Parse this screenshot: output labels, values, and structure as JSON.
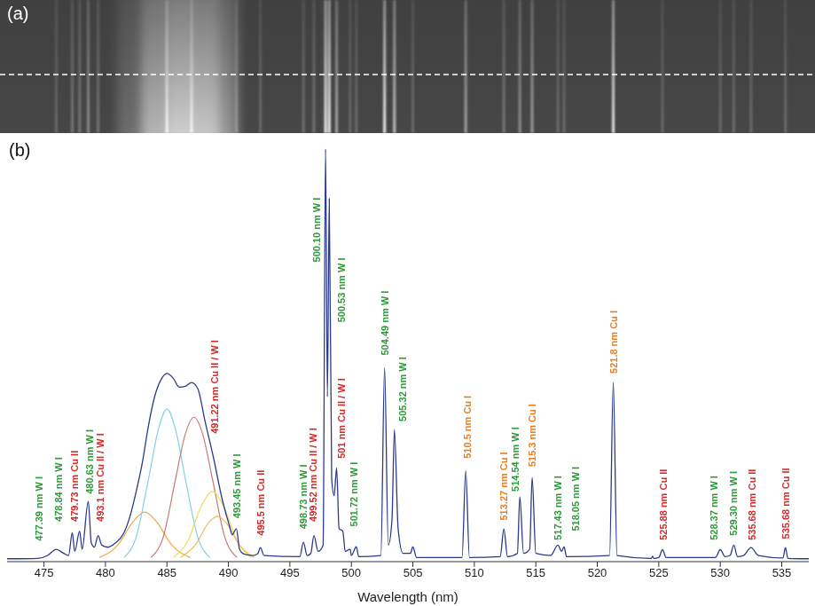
{
  "image_panel": {
    "label": "(a)"
  },
  "chart_data": {
    "type": "line",
    "panel_label": "(b)",
    "xlabel": "Wavelength (nm)",
    "xlim": [
      472,
      537.2
    ],
    "xticks": [
      475,
      480,
      485,
      490,
      495,
      500,
      505,
      510,
      515,
      520,
      525,
      530,
      535
    ],
    "ylim": [
      0,
      100
    ],
    "yticks": [],
    "tick_labels": "x",
    "grid": false,
    "color": "#2b3a8c",
    "x": [
      472.0,
      474.5,
      475.3,
      476.0,
      476.6,
      477.0,
      477.3,
      477.5,
      477.9,
      478.1,
      478.6,
      478.85,
      479.1,
      479.4,
      479.7,
      480.2,
      480.8,
      481.5,
      482.0,
      482.5,
      483.0,
      483.5,
      484.0,
      484.5,
      485.0,
      485.5,
      486.0,
      486.5,
      487.0,
      487.5,
      488.1,
      488.8,
      489.5,
      490.1,
      490.3,
      490.65,
      490.9,
      491.3,
      492.0,
      492.4,
      492.6,
      492.9,
      495.8,
      496.1,
      496.4,
      496.7,
      496.95,
      497.3,
      497.7,
      497.9,
      498.05,
      498.2,
      498.4,
      498.6,
      498.8,
      499.0,
      499.3,
      499.5,
      499.9,
      500.0,
      500.4,
      500.6,
      502.4,
      502.7,
      503.0,
      503.3,
      503.5,
      503.8,
      504.2,
      504.8,
      505.0,
      505.3,
      509.0,
      509.3,
      509.6,
      512.1,
      512.4,
      512.7,
      513.5,
      513.7,
      514.0,
      514.5,
      514.7,
      515.0,
      516.2,
      516.8,
      517.1,
      517.3,
      517.5,
      521.0,
      521.3,
      521.6,
      524.4,
      524.5,
      524.6,
      525.0,
      525.3,
      525.6,
      529.6,
      530.0,
      530.4,
      530.8,
      531.1,
      531.4,
      531.9,
      532.5,
      533.1,
      535.1,
      535.3,
      535.5,
      537.2
    ],
    "values": [
      0.7,
      0.8,
      1.5,
      3.0,
      2.0,
      1.5,
      7.0,
      2.5,
      7.4,
      3.0,
      14.6,
      4.5,
      3.5,
      6.3,
      4.0,
      3.5,
      4.5,
      7.0,
      11,
      17,
      24,
      33,
      40,
      44,
      45.6,
      44.5,
      42.3,
      42.5,
      43.4,
      42.0,
      34,
      25,
      15,
      8.5,
      6.5,
      8.0,
      3.0,
      1.8,
      1.5,
      2.0,
      3.4,
      1.5,
      1.2,
      4.7,
      1.5,
      2.0,
      6.3,
      2.5,
      4.0,
      100,
      40,
      88,
      20,
      16,
      22.7,
      8.0,
      7.4,
      2.5,
      3.0,
      1.5,
      3.6,
      1.2,
      1.5,
      47,
      4,
      10,
      32,
      8,
      2,
      2,
      3.6,
      1.0,
      1.0,
      22,
      1.0,
      1.2,
      7.9,
      1.2,
      2,
      15.7,
      2,
      3,
      20.4,
      2.0,
      1.5,
      4.0,
      2.5,
      3.6,
      1.2,
      1.5,
      43.4,
      1.5,
      0.8,
      1.3,
      0.8,
      1.0,
      2.9,
      1.0,
      1.0,
      2.9,
      1.2,
      1.5,
      4.0,
      1.2,
      1.5,
      3.4,
      1.5,
      0.9,
      3.4,
      0.8,
      0.7
    ],
    "series": [
      {
        "color": "#f0a848",
        "x": [
          479.5,
          481.0,
          482.2,
          483.2,
          484.2,
          485.4,
          486.9
        ],
        "values": [
          1,
          4,
          9.5,
          12,
          9.5,
          4,
          1
        ]
      },
      {
        "color": "#7fd3e0",
        "x": [
          481.5,
          482.5,
          483.5,
          484.3,
          485.0,
          485.7,
          486.5,
          487.5,
          488.5
        ],
        "values": [
          1,
          6,
          20,
          32,
          37,
          32,
          20,
          6,
          1
        ]
      },
      {
        "color": "#c97a7a",
        "x": [
          483.7,
          484.7,
          485.7,
          486.5,
          487.2,
          487.9,
          488.7,
          489.7,
          490.7
        ],
        "values": [
          1,
          6,
          20,
          31,
          35,
          31,
          20,
          6,
          1
        ]
      },
      {
        "color": "#eedc5a",
        "x": [
          485.5,
          486.7,
          487.8,
          488.7,
          489.6,
          490.7,
          491.9
        ],
        "values": [
          1,
          5,
          13.5,
          17,
          13.5,
          5,
          1
        ]
      },
      {
        "color": "#f5b860",
        "x": [
          486.1,
          487.3,
          488.4,
          489.1,
          489.8,
          490.9,
          492.1
        ],
        "values": [
          1,
          4,
          9.5,
          11,
          9.5,
          4,
          1
        ]
      }
    ],
    "annotations": [
      {
        "text": "477.39 nm W I",
        "x": 474.6,
        "y": 5,
        "color": "#2f9a3a"
      },
      {
        "text": "478.84 nm W I",
        "x": 476.2,
        "y": 9.7,
        "color": "#2f9a3a"
      },
      {
        "text": "479.73 nm Cu II",
        "x": 477.5,
        "y": 9.7,
        "color": "#d42a2a"
      },
      {
        "text": "480.63 nm W I",
        "x": 478.7,
        "y": 16.4,
        "color": "#2f9a3a"
      },
      {
        "text": "493.1 nm Cu II / W I",
        "x": 479.6,
        "y": 9.7,
        "color": "#d42a2a"
      },
      {
        "text": "491.22 nm Cu II / W I",
        "x": 488.9,
        "y": 31,
        "color": "#d42a2a"
      },
      {
        "text": "493.45 nm W I",
        "x": 490.7,
        "y": 10.5,
        "color": "#2f9a3a"
      },
      {
        "text": "495.5 nm Cu II",
        "x": 492.6,
        "y": 6.3,
        "color": "#d42a2a"
      },
      {
        "text": "498.73 nm W I",
        "x": 496.1,
        "y": 7.9,
        "color": "#2f9a3a"
      },
      {
        "text": "499.52 nm Cu II / W I",
        "x": 496.9,
        "y": 9.7,
        "color": "#d42a2a"
      },
      {
        "text": "500.10 nm W I",
        "x": 497.2,
        "y": 72.6,
        "color": "#2f9a3a"
      },
      {
        "text": "500.53 nm W I",
        "x": 499.2,
        "y": 58,
        "color": "#2f9a3a"
      },
      {
        "text": "501 nm Cu II / W I",
        "x": 499.2,
        "y": 25,
        "color": "#d42a2a"
      },
      {
        "text": "501.72 nm W I",
        "x": 500.2,
        "y": 8.5,
        "color": "#2f9a3a"
      },
      {
        "text": "504.49 nm W I",
        "x": 502.7,
        "y": 50,
        "color": "#2f9a3a"
      },
      {
        "text": "505.32 nm W I",
        "x": 504.2,
        "y": 34,
        "color": "#2f9a3a"
      },
      {
        "text": "510.5 nm Cu I",
        "x": 509.4,
        "y": 25,
        "color": "#e67e22"
      },
      {
        "text": "513.27 nm Cu I",
        "x": 512.4,
        "y": 10,
        "color": "#e67e22"
      },
      {
        "text": "514.54 nm W I",
        "x": 513.3,
        "y": 17,
        "color": "#2f9a3a"
      },
      {
        "text": "515.3 nm Cu I",
        "x": 514.7,
        "y": 23,
        "color": "#e67e22"
      },
      {
        "text": "517.43 nm W I",
        "x": 516.8,
        "y": 5.2,
        "color": "#2f9a3a"
      },
      {
        "text": "518.05 nm W I",
        "x": 518.2,
        "y": 7.4,
        "color": "#2f9a3a"
      },
      {
        "text": "521.8 nm Cu I",
        "x": 521.3,
        "y": 45.6,
        "color": "#e67e22"
      },
      {
        "text": "525.88 nm Cu II",
        "x": 525.4,
        "y": 5.2,
        "color": "#d42a2a"
      },
      {
        "text": "528.37 nm W I",
        "x": 529.5,
        "y": 5.2,
        "color": "#2f9a3a"
      },
      {
        "text": "529.30 nm W I",
        "x": 531.1,
        "y": 6.3,
        "color": "#2f9a3a"
      },
      {
        "text": "535.68 nm Cu II",
        "x": 532.6,
        "y": 5.2,
        "color": "#d42a2a"
      },
      {
        "text": "535.68 nm Cu II",
        "x": 535.3,
        "y": 5.5,
        "color": "#d42a2a"
      }
    ]
  }
}
